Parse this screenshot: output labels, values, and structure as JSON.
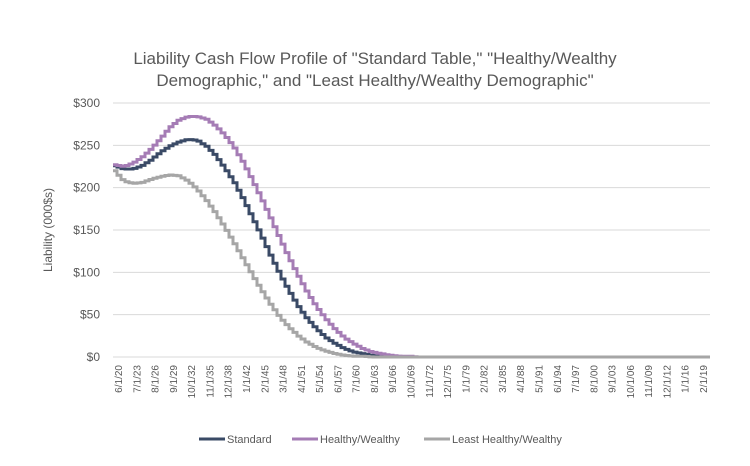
{
  "chart_data": {
    "type": "line",
    "title": [
      "Liability Cash Flow Profile of \"Standard Table,\" \"Healthy/Wealthy",
      "Demographic,\" and \"Least Healthy/Wealthy Demographic\""
    ],
    "xlabel": "",
    "ylabel": "Liability (000$s)",
    "ylim": [
      0,
      300
    ],
    "yticks": [
      "$0",
      "$50",
      "$100",
      "$150",
      "$200",
      "$250",
      "$300"
    ],
    "grid": true,
    "legend_position": "bottom",
    "x_tick_labels": [
      "6/1/20",
      "7/1/23",
      "8/1/26",
      "9/1/29",
      "10/1/32",
      "11/1/35",
      "12/1/38",
      "1/1/42",
      "2/1/45",
      "3/1/48",
      "4/1/51",
      "5/1/54",
      "6/1/57",
      "7/1/60",
      "8/1/63",
      "9/1/66",
      "10/1/69",
      "11/1/72",
      "12/1/75",
      "1/1/79",
      "2/1/82",
      "3/1/85",
      "4/1/88",
      "5/1/91",
      "6/1/94",
      "7/1/97",
      "8/1/00",
      "9/1/03",
      "10/1/06",
      "11/1/09",
      "12/1/12",
      "1/1/16",
      "2/1/19"
    ],
    "series": [
      {
        "name": "Standard",
        "color": "#3a4a66",
        "values": [
          226,
          222,
          222,
          226,
          233,
          242,
          249,
          254,
          257,
          256,
          249,
          238,
          223,
          207,
          187,
          165,
          143,
          120,
          98,
          78,
          60,
          45,
          33,
          23,
          16,
          10,
          6,
          4,
          2,
          1,
          1,
          0,
          0,
          0,
          0,
          0,
          0,
          0,
          0,
          0,
          0,
          0,
          0,
          0,
          0,
          0,
          0,
          0,
          0,
          0,
          0,
          0,
          0,
          0,
          0,
          0,
          0,
          0,
          0,
          0,
          0,
          0,
          0,
          0,
          0,
          0
        ]
      },
      {
        "name": "Healthy/Wealthy",
        "color": "#a57cb5",
        "values": [
          227,
          225,
          229,
          236,
          246,
          258,
          271,
          280,
          284,
          284,
          281,
          273,
          262,
          248,
          230,
          209,
          187,
          164,
          140,
          117,
          96,
          76,
          59,
          45,
          33,
          23,
          16,
          10,
          6,
          4,
          2,
          1,
          1,
          0,
          0,
          0,
          0,
          0,
          0,
          0,
          0,
          0,
          0,
          0,
          0,
          0,
          0,
          0,
          0,
          0,
          0,
          0,
          0,
          0,
          0,
          0,
          0,
          0,
          0,
          0,
          0,
          0,
          0,
          0,
          0,
          0
        ]
      },
      {
        "name": "Least Healthy/Wealthy",
        "color": "#a6a6a6",
        "values": [
          220,
          208,
          205,
          206,
          210,
          213,
          215,
          214,
          208,
          198,
          185,
          170,
          153,
          135,
          116,
          97,
          79,
          62,
          47,
          35,
          25,
          17,
          11,
          7,
          4,
          2,
          1,
          1,
          0,
          0,
          0,
          0,
          0,
          0,
          0,
          0,
          0,
          0,
          0,
          0,
          0,
          0,
          0,
          0,
          0,
          0,
          0,
          0,
          0,
          0,
          0,
          0,
          0,
          0,
          0,
          0,
          0,
          0,
          0,
          0,
          0,
          0,
          0,
          0,
          0,
          0
        ]
      }
    ],
    "x_step_note": "values sampled every ~1.5 years starting 6/1/20"
  }
}
